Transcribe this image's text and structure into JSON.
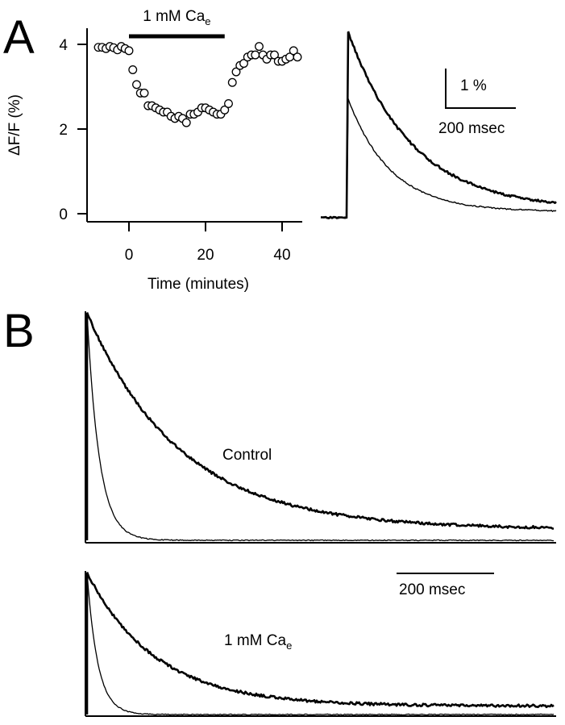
{
  "panels": {
    "a_letter": "A",
    "b_letter": "B"
  },
  "chart_data": [
    {
      "type": "scatter",
      "panel": "A",
      "ylabel": "ΔF/F (%)",
      "xlabel": "Time (minutes)",
      "xlim": [
        -9,
        45
      ],
      "ylim": [
        0,
        4.6
      ],
      "x_ticks": [
        0,
        20,
        40
      ],
      "x_tick_labels": [
        "0",
        "20",
        "40"
      ],
      "y_ticks": [
        0,
        2,
        4
      ],
      "y_tick_labels": [
        "0",
        "2",
        "4"
      ],
      "marker": "open-circle",
      "treatment_bar": {
        "label": "1 mM Ca",
        "label_sub": "e",
        "start": 0,
        "end": 25
      },
      "x": [
        -8,
        -7,
        -6,
        -5,
        -4,
        -3,
        -2,
        -1,
        0,
        1,
        2,
        3,
        4,
        5,
        6,
        7,
        8,
        9,
        10,
        11,
        12,
        13,
        14,
        15,
        16,
        17,
        18,
        19,
        20,
        21,
        22,
        23,
        24,
        25,
        26,
        27,
        28,
        29,
        30,
        31,
        32,
        33,
        34,
        35,
        36,
        37,
        38,
        39,
        40,
        41,
        42,
        43,
        44
      ],
      "y": [
        3.93,
        3.93,
        3.9,
        3.95,
        3.92,
        3.87,
        3.95,
        3.9,
        3.85,
        3.4,
        3.05,
        2.85,
        2.85,
        2.55,
        2.55,
        2.5,
        2.45,
        2.4,
        2.4,
        2.3,
        2.25,
        2.3,
        2.25,
        2.15,
        2.35,
        2.35,
        2.4,
        2.5,
        2.5,
        2.45,
        2.4,
        2.35,
        2.35,
        2.45,
        2.6,
        3.1,
        3.35,
        3.5,
        3.55,
        3.7,
        3.75,
        3.75,
        3.95,
        3.75,
        3.65,
        3.75,
        3.75,
        3.6,
        3.6,
        3.65,
        3.7,
        3.85,
        3.7
      ]
    },
    {
      "type": "line",
      "panel": "A-inset",
      "scalebar_y_label": "1 %",
      "scalebar_x_label": "200 msec",
      "scalebar_y_value": 1,
      "scalebar_x_value": 200,
      "series": [
        {
          "style": "thick",
          "baseline": -0.1,
          "peak": 4.6,
          "decay_tau_ms": 180,
          "plateau": 0.1
        },
        {
          "style": "thin",
          "baseline": -0.1,
          "peak": 2.9,
          "decay_tau_ms": 120,
          "plateau": 0.05
        }
      ]
    },
    {
      "type": "line",
      "panel": "B-control",
      "annotation": "Control",
      "series": [
        {
          "style": "thick",
          "decay_tau_ms": 190,
          "plateau": 0.05
        },
        {
          "style": "thin",
          "decay_tau_ms": 25,
          "plateau": 0.0
        }
      ]
    },
    {
      "type": "line",
      "panel": "B-calcium",
      "annotation": "1 mM Ca",
      "annotation_sub": "e",
      "scalebar_x_label": "200 msec",
      "scalebar_x_value": 200,
      "series": [
        {
          "style": "thick",
          "decay_tau_ms": 140,
          "plateau": 0.06
        },
        {
          "style": "thin",
          "decay_tau_ms": 22,
          "plateau": 0.0
        }
      ]
    }
  ]
}
